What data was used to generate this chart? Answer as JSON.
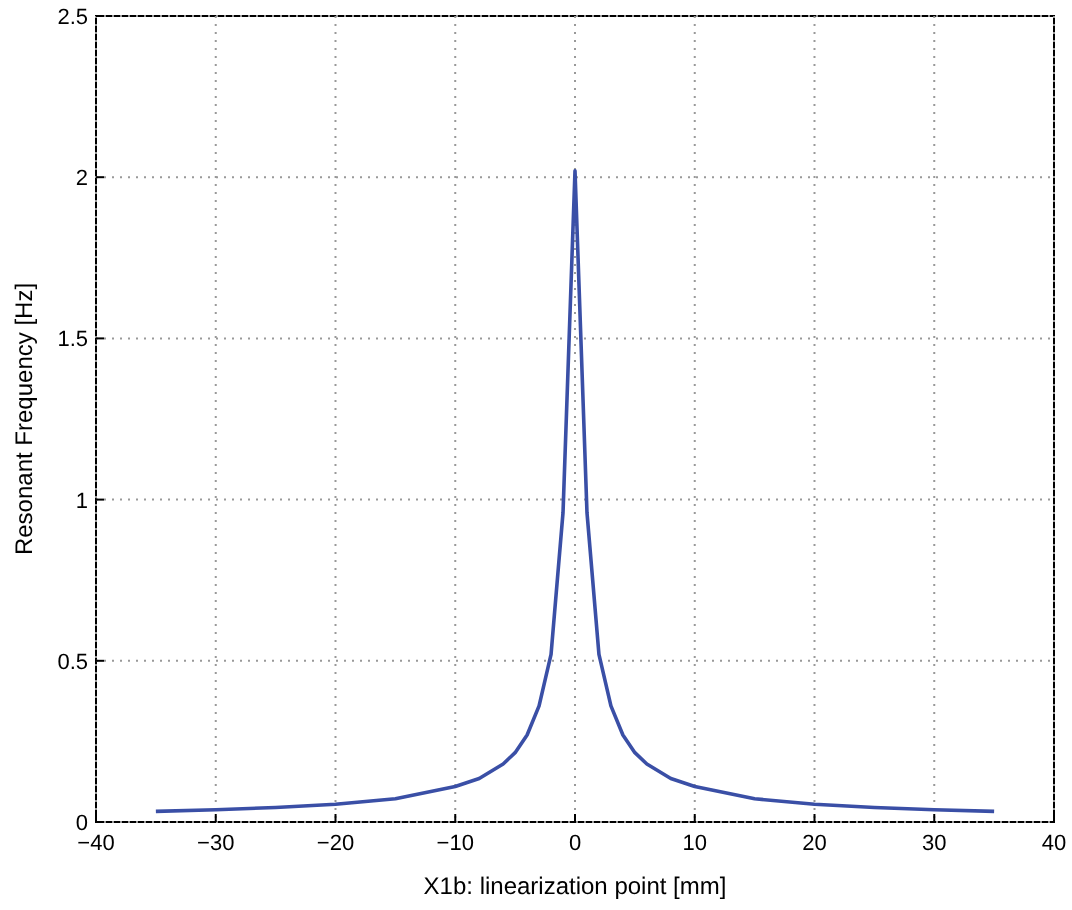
{
  "chart_data": {
    "type": "line",
    "xlabel": "X1b: linearization point [mm]",
    "ylabel": "Resonant Frequency [Hz]",
    "x": [
      -35,
      -30,
      -25,
      -20,
      -15,
      -10,
      -8,
      -6,
      -5,
      -4,
      -3,
      -2,
      -1,
      0,
      1,
      2,
      3,
      4,
      5,
      6,
      8,
      10,
      15,
      20,
      25,
      30,
      35
    ],
    "series": [
      {
        "color": "#3a4fa6",
        "values": [
          0.033,
          0.038,
          0.045,
          0.055,
          0.072,
          0.11,
          0.135,
          0.18,
          0.215,
          0.27,
          0.36,
          0.52,
          0.96,
          2.02,
          0.96,
          0.52,
          0.36,
          0.27,
          0.215,
          0.18,
          0.135,
          0.11,
          0.072,
          0.055,
          0.045,
          0.038,
          0.033
        ]
      }
    ],
    "xlim": [
      -40,
      40
    ],
    "xticks": [
      -40,
      -30,
      -20,
      -10,
      0,
      10,
      20,
      30,
      40
    ],
    "ylim": [
      0,
      2.5
    ],
    "yticks": [
      0,
      0.5,
      1,
      1.5,
      2,
      2.5
    ],
    "grid": true,
    "line_style": "solid",
    "marker": "none"
  }
}
